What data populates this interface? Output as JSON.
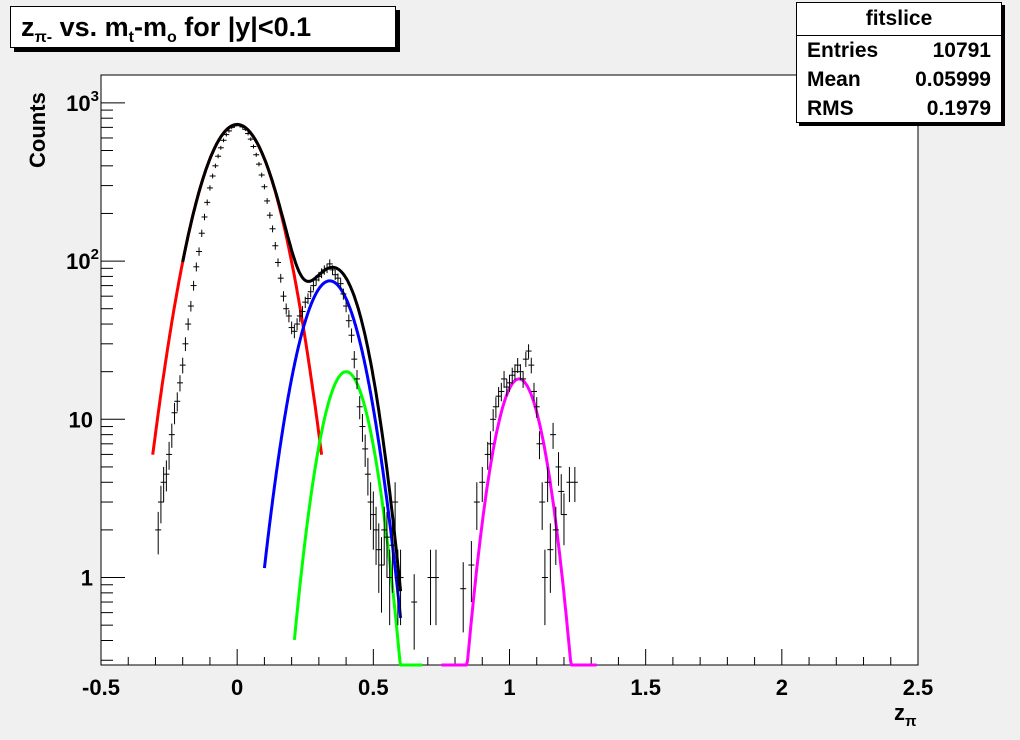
{
  "title": {
    "main": "z",
    "sub1": "π-",
    "mid1": " vs. m",
    "sub2": "t",
    "mid2": "-m",
    "sub3": "o",
    "tail": " for |y|<0.1"
  },
  "stats": {
    "header": "fitslice",
    "rows": [
      {
        "key": "Entries",
        "value": "10791"
      },
      {
        "key": "Mean",
        "value": "0.05999"
      },
      {
        "key": "RMS",
        "value": "0.1979"
      }
    ]
  },
  "chart_data": {
    "type": "scatter",
    "xlabel": "z",
    "xlabel_sub": "π",
    "ylabel": "Counts",
    "xlim": [
      -0.5,
      2.5
    ],
    "ylim": [
      0.28,
      1500
    ],
    "y_scale": "log",
    "grid": false,
    "x_ticks": [
      {
        "v": -0.5,
        "label": "-0.5"
      },
      {
        "v": 0,
        "label": "0"
      },
      {
        "v": 0.5,
        "label": "0.5"
      },
      {
        "v": 1,
        "label": "1"
      },
      {
        "v": 1.5,
        "label": "1.5"
      },
      {
        "v": 2,
        "label": "2"
      },
      {
        "v": 2.5,
        "label": "2.5"
      }
    ],
    "y_ticks": [
      {
        "v": 1,
        "label": "1",
        "sup": ""
      },
      {
        "v": 10,
        "label": "10",
        "sup": ""
      },
      {
        "v": 100,
        "label": "10",
        "sup": "2"
      },
      {
        "v": 1000,
        "label": "10",
        "sup": "3"
      }
    ],
    "points": [
      [
        -0.29,
        2.0,
        0.6
      ],
      [
        -0.28,
        3.0,
        0.8
      ],
      [
        -0.27,
        4.0,
        1.0
      ],
      [
        -0.26,
        4.5,
        1.0
      ],
      [
        -0.25,
        6.0,
        1.2
      ],
      [
        -0.24,
        8.0,
        1.4
      ],
      [
        -0.23,
        11.0,
        1.7
      ],
      [
        -0.22,
        13.0,
        1.8
      ],
      [
        -0.21,
        17.0,
        2.0
      ],
      [
        -0.2,
        22.0,
        2.5
      ],
      [
        -0.19,
        30.0,
        3.0
      ],
      [
        -0.18,
        40.0,
        3.5
      ],
      [
        -0.17,
        52.0,
        4.0
      ],
      [
        -0.16,
        70.0,
        5.0
      ],
      [
        -0.15,
        92.0,
        6.0
      ],
      [
        -0.14,
        115.0,
        7.0
      ],
      [
        -0.13,
        150.0,
        8.0
      ],
      [
        -0.12,
        190.0,
        9.0
      ],
      [
        -0.11,
        235.0,
        10.0
      ],
      [
        -0.1,
        290.0,
        11.0
      ],
      [
        -0.09,
        345.0,
        12.0
      ],
      [
        -0.08,
        400.0,
        13.0
      ],
      [
        -0.07,
        460.0,
        14.0
      ],
      [
        -0.06,
        520.0,
        15.0
      ],
      [
        -0.05,
        580.0,
        16.0
      ],
      [
        -0.04,
        630.0,
        17.0
      ],
      [
        -0.03,
        665.0,
        17.0
      ],
      [
        -0.02,
        700.0,
        18.0
      ],
      [
        -0.01,
        715.0,
        18.0
      ],
      [
        0.0,
        730.0,
        18.0
      ],
      [
        0.01,
        720.0,
        18.0
      ],
      [
        0.02,
        705.0,
        18.0
      ],
      [
        0.03,
        680.0,
        17.0
      ],
      [
        0.04,
        640.0,
        17.0
      ],
      [
        0.05,
        590.0,
        16.0
      ],
      [
        0.06,
        530.0,
        15.0
      ],
      [
        0.07,
        470.0,
        14.0
      ],
      [
        0.08,
        410.0,
        13.0
      ],
      [
        0.09,
        350.0,
        12.0
      ],
      [
        0.1,
        295.0,
        11.0
      ],
      [
        0.11,
        240.0,
        10.0
      ],
      [
        0.12,
        195.0,
        9.0
      ],
      [
        0.13,
        160.0,
        8.0
      ],
      [
        0.14,
        125.0,
        7.0
      ],
      [
        0.15,
        98.0,
        6.0
      ],
      [
        0.16,
        78.0,
        5.0
      ],
      [
        0.17,
        60.0,
        4.5
      ],
      [
        0.18,
        50.0,
        4.0
      ],
      [
        0.19,
        45.0,
        4.0
      ],
      [
        0.2,
        38.0,
        3.5
      ],
      [
        0.21,
        36.0,
        3.5
      ],
      [
        0.22,
        40.0,
        3.5
      ],
      [
        0.23,
        45.0,
        4.0
      ],
      [
        0.24,
        48.0,
        4.0
      ],
      [
        0.25,
        55.0,
        4.5
      ],
      [
        0.26,
        58.0,
        4.5
      ],
      [
        0.27,
        64.0,
        5.0
      ],
      [
        0.28,
        70.0,
        5.0
      ],
      [
        0.29,
        76.0,
        5.5
      ],
      [
        0.3,
        80.0,
        5.5
      ],
      [
        0.31,
        84.0,
        6.0
      ],
      [
        0.32,
        88.0,
        6.0
      ],
      [
        0.33,
        90.0,
        6.0
      ],
      [
        0.34,
        96.0,
        6.5
      ],
      [
        0.35,
        88.0,
        6.0
      ],
      [
        0.36,
        82.0,
        6.0
      ],
      [
        0.37,
        78.0,
        5.5
      ],
      [
        0.38,
        72.0,
        5.5
      ],
      [
        0.39,
        62.0,
        5.0
      ],
      [
        0.4,
        52.0,
        4.5
      ],
      [
        0.41,
        42.0,
        4.0
      ],
      [
        0.42,
        34.0,
        3.5
      ],
      [
        0.43,
        24.0,
        3.0
      ],
      [
        0.44,
        18.0,
        2.5
      ],
      [
        0.45,
        12.0,
        2.0
      ],
      [
        0.46,
        9.0,
        1.8
      ],
      [
        0.47,
        6.5,
        1.5
      ],
      [
        0.48,
        4.5,
        1.2
      ],
      [
        0.49,
        3.0,
        1.0
      ],
      [
        0.5,
        2.5,
        1.0
      ],
      [
        0.51,
        2.0,
        0.8
      ],
      [
        0.52,
        1.5,
        0.7
      ],
      [
        0.53,
        1.2,
        0.6
      ],
      [
        0.54,
        2.0,
        0.8
      ],
      [
        0.55,
        1.8,
        0.8
      ],
      [
        0.56,
        1.0,
        0.5
      ],
      [
        0.57,
        1.6,
        0.8
      ],
      [
        0.58,
        3.0,
        1.0
      ],
      [
        0.59,
        1.0,
        0.5
      ],
      [
        0.6,
        1.0,
        0.5
      ],
      [
        0.65,
        0.7,
        0.35
      ],
      [
        0.71,
        1.0,
        0.5
      ],
      [
        0.73,
        1.0,
        0.5
      ],
      [
        0.83,
        0.85,
        0.4
      ],
      [
        0.86,
        1.2,
        0.5
      ],
      [
        0.88,
        3.0,
        1.0
      ],
      [
        0.9,
        4.0,
        1.0
      ],
      [
        0.92,
        6.0,
        1.2
      ],
      [
        0.93,
        7.0,
        1.4
      ],
      [
        0.94,
        10.0,
        1.6
      ],
      [
        0.95,
        12.0,
        1.8
      ],
      [
        0.96,
        14.0,
        2.0
      ],
      [
        0.97,
        15.0,
        2.0
      ],
      [
        0.98,
        18.0,
        2.2
      ],
      [
        0.99,
        16.0,
        2.0
      ],
      [
        1.0,
        17.0,
        2.1
      ],
      [
        1.01,
        19.0,
        2.2
      ],
      [
        1.02,
        20.0,
        2.3
      ],
      [
        1.03,
        22.0,
        2.4
      ],
      [
        1.04,
        20.0,
        2.3
      ],
      [
        1.05,
        18.0,
        2.2
      ],
      [
        1.06,
        24.0,
        2.6
      ],
      [
        1.07,
        27.0,
        2.8
      ],
      [
        1.08,
        22.0,
        2.5
      ],
      [
        1.09,
        15.0,
        2.0
      ],
      [
        1.1,
        12.0,
        1.8
      ],
      [
        1.11,
        7.0,
        1.4
      ],
      [
        1.12,
        3.0,
        1.0
      ],
      [
        1.13,
        1.0,
        0.5
      ],
      [
        1.14,
        4.0,
        1.0
      ],
      [
        1.15,
        1.5,
        0.7
      ],
      [
        1.16,
        8.0,
        1.5
      ],
      [
        1.17,
        2.0,
        0.8
      ],
      [
        1.18,
        5.0,
        1.2
      ],
      [
        1.19,
        3.5,
        1.0
      ],
      [
        1.2,
        2.5,
        0.9
      ],
      [
        1.22,
        4.0,
        1.0
      ],
      [
        1.24,
        4.0,
        1.0
      ]
    ],
    "fits": [
      {
        "name": "",
        "color": "#ff0000",
        "type": "gauss",
        "amp": 730,
        "mean": 0.0,
        "sigma": 0.1,
        "range": [
          -0.31,
          0.31
        ]
      },
      {
        "name": "",
        "color": "#0000ff",
        "type": "gauss",
        "amp": 75,
        "mean": 0.34,
        "sigma": 0.083,
        "range": [
          0.1,
          0.6
        ]
      },
      {
        "name": "",
        "color": "#00ff00",
        "type": "gauss",
        "amp": 20,
        "mean": 0.4,
        "sigma": 0.068,
        "range": [
          0.21,
          0.68
        ]
      },
      {
        "name": "",
        "color": "#ff00ff",
        "type": "gauss",
        "amp": 18,
        "mean": 1.035,
        "sigma": 0.066,
        "range": [
          0.75,
          1.32
        ]
      },
      {
        "name": "",
        "color": "#000000",
        "type": "sum",
        "components": [
          0,
          1,
          2
        ],
        "range": [
          -0.2,
          0.6
        ]
      }
    ]
  }
}
